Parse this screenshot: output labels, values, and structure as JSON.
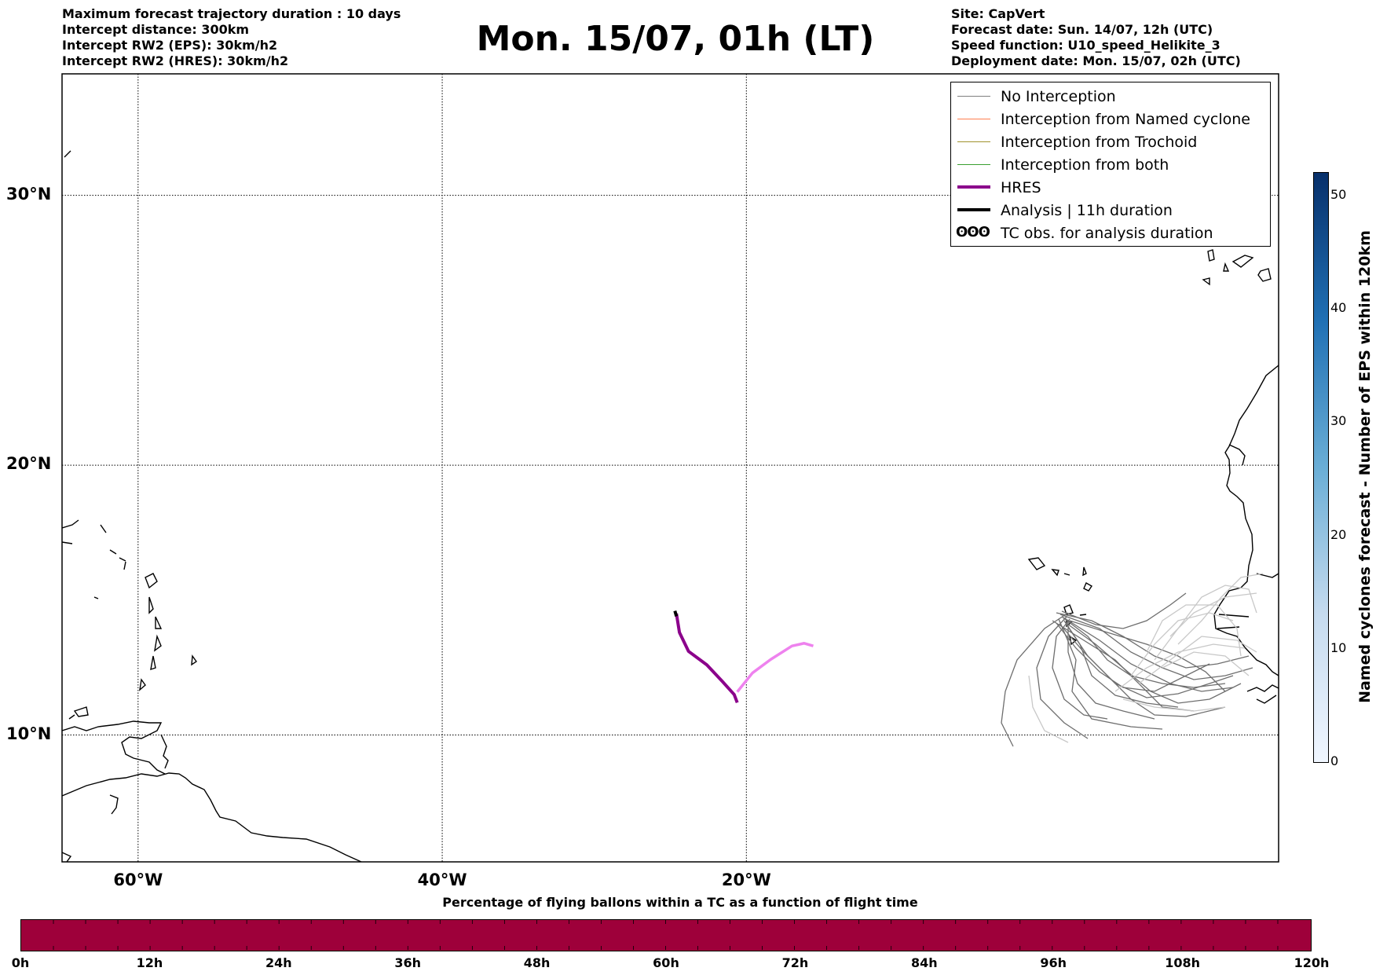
{
  "header_left": [
    "Maximum forecast trajectory duration : 10 days",
    "Intercept distance: 300km",
    "Intercept RW2 (EPS):  30km/h2",
    "Intercept RW2 (HRES): 30km/h2"
  ],
  "title": "Mon. 15/07, 01h (LT)",
  "header_right": [
    "Site: CapVert",
    "Forecast date: Sun. 14/07, 12h (UTC)",
    "Speed function: U10_speed_Helikite_3",
    "Deployment date: Mon. 15/07, 02h (UTC)"
  ],
  "map": {
    "lon_range": [
      -65,
      15
    ],
    "lat_range": [
      5.3,
      34.5
    ],
    "lat_labels": [
      {
        "value": 30,
        "label": "30°N"
      },
      {
        "value": 20,
        "label": "20°N"
      },
      {
        "value": 10,
        "label": "10°N"
      }
    ],
    "lon_labels": [
      {
        "value": -60,
        "label": "60°W"
      },
      {
        "value": -40,
        "label": "40°W"
      },
      {
        "value": -20,
        "label": "20°W"
      }
    ]
  },
  "legend": {
    "items": [
      {
        "label": "No Interception",
        "color": "#808080",
        "width": 1.5
      },
      {
        "label": "Interception from Named cyclone",
        "color": "#ff7f50",
        "width": 1.5
      },
      {
        "label": "Interception from Trochoid",
        "color": "#a0922e",
        "width": 1.5
      },
      {
        "label": "Interception from both",
        "color": "#3aa030",
        "width": 1.5
      },
      {
        "label": "HRES",
        "color": "#8b008b",
        "width": 4
      },
      {
        "label": "Analysis | 11h duration",
        "color": "#000000",
        "width": 4
      }
    ],
    "tc_label": "TC obs. for analysis duration",
    "tc_glyph": "ʘʘʘ"
  },
  "colorbar": {
    "label": "Named cyclones forecast - Number of EPS within 120km",
    "min": 0,
    "max": 52,
    "ticks": [
      "0",
      "10",
      "20",
      "30",
      "40",
      "50"
    ]
  },
  "bottom": {
    "title": "Percentage of flying ballons within a TC as a function of flight time",
    "color": "#9e003a",
    "ticks": [
      "0h",
      "12h",
      "24h",
      "36h",
      "48h",
      "60h",
      "72h",
      "84h",
      "96h",
      "108h",
      "120h"
    ]
  },
  "trajectories": {
    "hres": [
      [
        -24.6,
        14.5
      ],
      [
        -24.4,
        13.8
      ],
      [
        -23.8,
        13.1
      ],
      [
        -22.6,
        12.6
      ],
      [
        -21.6,
        12.0
      ],
      [
        -20.8,
        11.5
      ],
      [
        -20.6,
        11.2
      ]
    ],
    "hres_future": [
      [
        -20.6,
        11.6
      ],
      [
        -19.6,
        12.3
      ],
      [
        -18.4,
        12.8
      ],
      [
        -17.0,
        13.3
      ],
      [
        -16.2,
        13.4
      ],
      [
        -15.6,
        13.3
      ]
    ],
    "analysis": [
      [
        -24.7,
        14.6
      ],
      [
        -24.6,
        14.4
      ]
    ]
  }
}
